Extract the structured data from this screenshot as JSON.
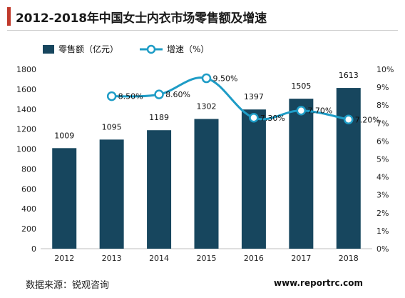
{
  "header": {
    "title": "2012-2018年中国女士内衣市场零售额及增速"
  },
  "footer": {
    "source": "数据来源：锐观咨询",
    "watermark": "www.reportrc.com"
  },
  "colors": {
    "bar": "#17465e",
    "line": "#1e9cc6",
    "accent": "#c0392b"
  },
  "chart_data": {
    "type": "bar",
    "categories": [
      "2012",
      "2013",
      "2014",
      "2015",
      "2016",
      "2017",
      "2018"
    ],
    "series": [
      {
        "name": "零售额（亿元）",
        "type": "bar",
        "axis": "left",
        "values": [
          1009,
          1095,
          1189,
          1302,
          1397,
          1505,
          1613
        ],
        "labels": [
          "1009",
          "1095",
          "1189",
          "1302",
          "1397",
          "1505",
          "1613"
        ]
      },
      {
        "name": "增速（%）",
        "type": "line",
        "axis": "right",
        "values": [
          null,
          8.5,
          8.6,
          9.5,
          7.3,
          7.7,
          7.2
        ],
        "labels": [
          "",
          "8.50%",
          "8.60%",
          "9.50%",
          "7.30%",
          "7.70%",
          "7.20%"
        ]
      }
    ],
    "y_left": {
      "ylim": [
        0,
        1800
      ],
      "ticks": [
        "0",
        "200",
        "400",
        "600",
        "800",
        "1000",
        "1200",
        "1400",
        "1600",
        "1800"
      ]
    },
    "y_right": {
      "ylim": [
        0,
        10
      ],
      "ticks": [
        "0%",
        "1%",
        "2%",
        "3%",
        "4%",
        "5%",
        "6%",
        "7%",
        "8%",
        "9%",
        "10%"
      ]
    },
    "grid": false,
    "legend": "top-left"
  }
}
